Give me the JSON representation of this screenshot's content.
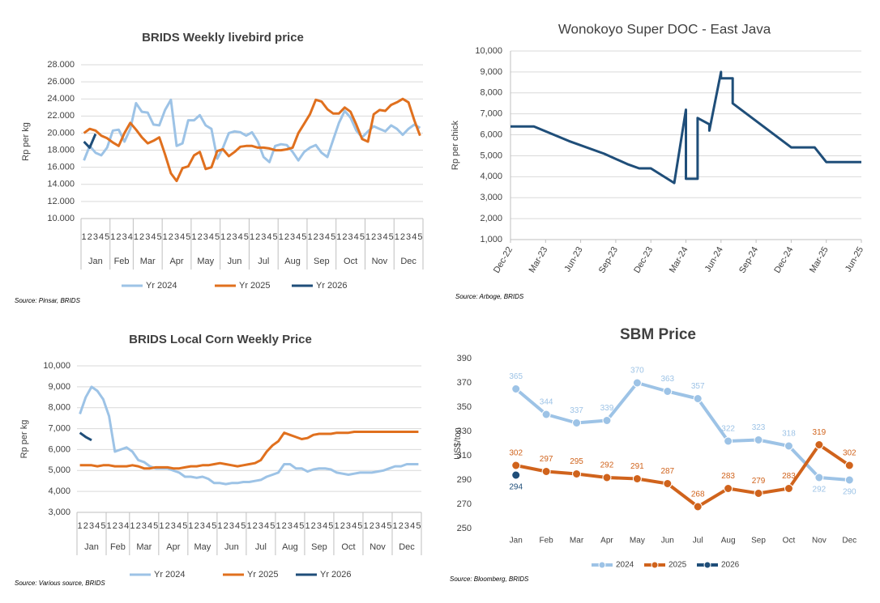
{
  "chart_data": [
    {
      "type": "line",
      "title": "BRIDS Weekly livebird price",
      "y_label": "Rp per kg",
      "source": "Source: Pinsar, BRIDS",
      "months": [
        {
          "label": "Jan",
          "weeks": [
            "1",
            "2",
            "3",
            "4",
            "5"
          ]
        },
        {
          "label": "Feb",
          "weeks": [
            "1",
            "2",
            "3",
            "4"
          ]
        },
        {
          "label": "Mar",
          "weeks": [
            "1",
            "2",
            "3",
            "4",
            "5"
          ]
        },
        {
          "label": "Apr",
          "weeks": [
            "1",
            "2",
            "3",
            "4",
            "5"
          ]
        },
        {
          "label": "May",
          "weeks": [
            "1",
            "2",
            "3",
            "4",
            "5"
          ]
        },
        {
          "label": "Jun",
          "weeks": [
            "1",
            "2",
            "3",
            "4",
            "5"
          ]
        },
        {
          "label": "Jul",
          "weeks": [
            "1",
            "2",
            "3",
            "4",
            "5"
          ]
        },
        {
          "label": "Aug",
          "weeks": [
            "1",
            "2",
            "3",
            "4",
            "5"
          ]
        },
        {
          "label": "Sep",
          "weeks": [
            "1",
            "2",
            "3",
            "4",
            "5"
          ]
        },
        {
          "label": "Oct",
          "weeks": [
            "1",
            "2",
            "3",
            "4",
            "5"
          ]
        },
        {
          "label": "Nov",
          "weeks": [
            "1",
            "2",
            "3",
            "4",
            "5"
          ]
        },
        {
          "label": "Dec",
          "weeks": [
            "1",
            "2",
            "3",
            "4",
            "5"
          ]
        }
      ],
      "ylim": [
        10000,
        28000
      ],
      "yticks": [
        {
          "value": 10000,
          "label": "10.000"
        },
        {
          "value": 12000,
          "label": "12.000"
        },
        {
          "value": 14000,
          "label": "14.000"
        },
        {
          "value": 16000,
          "label": "16.000"
        },
        {
          "value": 18000,
          "label": "18.000"
        },
        {
          "value": 20000,
          "label": "20.000"
        },
        {
          "value": 22000,
          "label": "22.000"
        },
        {
          "value": 24000,
          "label": "24.000"
        },
        {
          "value": 26000,
          "label": "26.000"
        },
        {
          "value": 28000,
          "label": "28.000"
        }
      ],
      "grid": true,
      "legend": "bottom",
      "series": [
        {
          "name": "Yr 2024",
          "color": "#9dc3e6",
          "values": [
            16800,
            18500,
            17700,
            17400,
            18300,
            20300,
            20400,
            19000,
            20500,
            23500,
            22500,
            22400,
            21000,
            20900,
            22700,
            23900,
            18500,
            18800,
            21500,
            21500,
            22100,
            20900,
            20500,
            17000,
            18300,
            20000,
            20200,
            20100,
            19700,
            20100,
            19000,
            17200,
            16600,
            18500,
            18700,
            18600,
            17800,
            16800,
            17800,
            18300,
            18600,
            17700,
            17200,
            19200,
            21200,
            22600,
            21800,
            20300,
            19500,
            20200,
            20800,
            20500,
            20200,
            20900,
            20500,
            19800,
            20500,
            21000,
            20600
          ]
        },
        {
          "name": "Yr 2025",
          "color": "#e0701e",
          "values": [
            20000,
            20500,
            20300,
            19700,
            19400,
            18900,
            18500,
            20000,
            21200,
            20400,
            19500,
            18800,
            19100,
            19500,
            17500,
            15300,
            14400,
            15900,
            16100,
            17400,
            17800,
            15800,
            16000,
            17900,
            18100,
            17300,
            17800,
            18400,
            18500,
            18500,
            18300,
            18300,
            18200,
            18000,
            18000,
            18100,
            18300,
            20000,
            21100,
            22200,
            23900,
            23700,
            22800,
            22300,
            22300,
            23000,
            22500,
            21000,
            19300,
            19000,
            22200,
            22700,
            22600,
            23300,
            23600,
            24000,
            23600,
            21500,
            19700
          ]
        },
        {
          "name": "Yr 2026",
          "color": "#1f4e79",
          "values": [
            19000,
            18300,
            19900,
            null,
            null,
            null,
            null,
            null,
            null,
            null,
            null,
            null,
            null,
            null,
            null,
            null,
            null,
            null,
            null,
            null,
            null,
            null,
            null,
            null,
            null,
            null,
            null,
            null,
            null,
            null,
            null,
            null,
            null,
            null,
            null,
            null,
            null,
            null,
            null,
            null,
            null,
            null,
            null,
            null,
            null,
            null,
            null,
            null,
            null,
            null,
            null,
            null,
            null,
            null,
            null,
            null,
            null,
            null,
            null
          ]
        }
      ]
    },
    {
      "type": "line",
      "title": "Wonokoyo Super DOC - East Java",
      "y_label": "Rp per chick",
      "source": "Source: Arboge, BRIDS",
      "x": [
        "2022-12",
        "2023-02",
        "2023-05",
        "2023-08",
        "2023-10",
        "2023-11",
        "2023-12",
        "2024-02",
        "2024-03",
        "2024-03",
        "2024-04",
        "2024-04",
        "2024-05",
        "2024-05",
        "2024-06",
        "2024-06",
        "2024-07",
        "2024-07",
        "2024-12",
        "2025-02",
        "2025-03",
        "2025-06"
      ],
      "xlim": [
        "2022-12",
        "2025-06"
      ],
      "xticks": [
        {
          "value": "2022-12",
          "label": "Dec-22"
        },
        {
          "value": "2023-03",
          "label": "Mar-23"
        },
        {
          "value": "2023-06",
          "label": "Jun-23"
        },
        {
          "value": "2023-09",
          "label": "Sep-23"
        },
        {
          "value": "2023-12",
          "label": "Dec-23"
        },
        {
          "value": "2024-03",
          "label": "Mar-24"
        },
        {
          "value": "2024-06",
          "label": "Jun-24"
        },
        {
          "value": "2024-09",
          "label": "Sep-24"
        },
        {
          "value": "2024-12",
          "label": "Dec-24"
        },
        {
          "value": "2025-03",
          "label": "Mar-25"
        },
        {
          "value": "2025-06",
          "label": "Jun-25"
        }
      ],
      "ylim": [
        1000,
        10000
      ],
      "yticks": [
        {
          "value": 1000,
          "label": "1,000"
        },
        {
          "value": 2000,
          "label": "2,000"
        },
        {
          "value": 3000,
          "label": "3,000"
        },
        {
          "value": 4000,
          "label": "4,000"
        },
        {
          "value": 5000,
          "label": "5,000"
        },
        {
          "value": 6000,
          "label": "6,000"
        },
        {
          "value": 7000,
          "label": "7,000"
        },
        {
          "value": 8000,
          "label": "8,000"
        },
        {
          "value": 9000,
          "label": "9,000"
        },
        {
          "value": 10000,
          "label": "10,000"
        }
      ],
      "grid": true,
      "series": [
        {
          "color": "#1f4e79",
          "values": [
            6400,
            6400,
            5700,
            5100,
            4600,
            4400,
            4400,
            3700,
            7200,
            3900,
            3900,
            6800,
            6500,
            6200,
            9000,
            8700,
            8700,
            7500,
            5400,
            5400,
            4700,
            4700
          ]
        }
      ]
    },
    {
      "type": "line",
      "title": "BRIDS Local Corn Weekly Price",
      "y_label": "Rp per kg",
      "source": "Source: Various source, BRIDS",
      "months": [
        {
          "label": "Jan",
          "weeks": [
            "1",
            "2",
            "3",
            "4",
            "5"
          ]
        },
        {
          "label": "Feb",
          "weeks": [
            "1",
            "2",
            "3",
            "4"
          ]
        },
        {
          "label": "Mar",
          "weeks": [
            "1",
            "2",
            "3",
            "4",
            "5"
          ]
        },
        {
          "label": "Apr",
          "weeks": [
            "1",
            "2",
            "3",
            "4",
            "5"
          ]
        },
        {
          "label": "May",
          "weeks": [
            "1",
            "2",
            "3",
            "4",
            "5"
          ]
        },
        {
          "label": "Jun",
          "weeks": [
            "1",
            "2",
            "3",
            "4",
            "5"
          ]
        },
        {
          "label": "Jul",
          "weeks": [
            "1",
            "2",
            "3",
            "4",
            "5"
          ]
        },
        {
          "label": "Aug",
          "weeks": [
            "1",
            "2",
            "3",
            "4",
            "5"
          ]
        },
        {
          "label": "Sep",
          "weeks": [
            "1",
            "2",
            "3",
            "4",
            "5"
          ]
        },
        {
          "label": "Oct",
          "weeks": [
            "1",
            "2",
            "3",
            "4",
            "5"
          ]
        },
        {
          "label": "Nov",
          "weeks": [
            "1",
            "2",
            "3",
            "4",
            "5"
          ]
        },
        {
          "label": "Dec",
          "weeks": [
            "1",
            "2",
            "3",
            "4",
            "5"
          ]
        }
      ],
      "ylim": [
        3000,
        10000
      ],
      "yticks": [
        {
          "value": 3000,
          "label": "3,000"
        },
        {
          "value": 4000,
          "label": "4,000"
        },
        {
          "value": 5000,
          "label": "5,000"
        },
        {
          "value": 6000,
          "label": "6,000"
        },
        {
          "value": 7000,
          "label": "7,000"
        },
        {
          "value": 8000,
          "label": "8,000"
        },
        {
          "value": 9000,
          "label": "9,000"
        },
        {
          "value": 10000,
          "label": "10,000"
        }
      ],
      "grid": true,
      "legend": "bottom",
      "series": [
        {
          "name": "Yr 2024",
          "color": "#9dc3e6",
          "values": [
            7700,
            8500,
            9000,
            8800,
            8400,
            7600,
            5900,
            6000,
            6100,
            5900,
            5500,
            5400,
            5200,
            5100,
            5100,
            5100,
            5000,
            4900,
            4700,
            4700,
            4650,
            4700,
            4600,
            4400,
            4400,
            4350,
            4400,
            4400,
            4450,
            4450,
            4500,
            4550,
            4700,
            4800,
            4900,
            5300,
            5300,
            5100,
            5100,
            4950,
            5050,
            5100,
            5100,
            5050,
            4900,
            4850,
            4800,
            4850,
            4900,
            4900,
            4900,
            4950,
            5000,
            5100,
            5200,
            5200,
            5300,
            5300,
            5300
          ]
        },
        {
          "name": "Yr 2025",
          "color": "#e0701e",
          "values": [
            5250,
            5250,
            5250,
            5200,
            5250,
            5250,
            5200,
            5200,
            5200,
            5250,
            5200,
            5100,
            5100,
            5150,
            5150,
            5150,
            5100,
            5100,
            5150,
            5200,
            5200,
            5250,
            5250,
            5300,
            5350,
            5300,
            5250,
            5200,
            5250,
            5300,
            5350,
            5500,
            5900,
            6200,
            6400,
            6800,
            6700,
            6600,
            6500,
            6550,
            6700,
            6750,
            6750,
            6750,
            6800,
            6800,
            6800,
            6850,
            6850,
            6850,
            6850,
            6850,
            6850,
            6850,
            6850,
            6850,
            6850,
            6850,
            6850
          ]
        },
        {
          "name": "Yr 2026",
          "color": "#1f4e79",
          "values": [
            6800,
            6600,
            6450,
            null,
            null,
            null,
            null,
            null,
            null,
            null,
            null,
            null,
            null,
            null,
            null,
            null,
            null,
            null,
            null,
            null,
            null,
            null,
            null,
            null,
            null,
            null,
            null,
            null,
            null,
            null,
            null,
            null,
            null,
            null,
            null,
            null,
            null,
            null,
            null,
            null,
            null,
            null,
            null,
            null,
            null,
            null,
            null,
            null,
            null,
            null,
            null,
            null,
            null,
            null,
            null,
            null,
            null,
            null,
            null
          ]
        }
      ]
    },
    {
      "type": "line",
      "title": "SBM Price",
      "y_label": "US$/ton",
      "source": "Source: Bloomberg, BRIDS",
      "categories": [
        "Jan",
        "Feb",
        "Mar",
        "Apr",
        "May",
        "Jun",
        "Jul",
        "Aug",
        "Sep",
        "Oct",
        "Nov",
        "Dec"
      ],
      "ylim": [
        250,
        390
      ],
      "yticks": [
        250,
        270,
        290,
        310,
        330,
        350,
        370,
        390
      ],
      "grid": false,
      "markers": true,
      "data_labels": true,
      "legend": "bottom",
      "series": [
        {
          "name": "2024",
          "color": "#9dc3e6",
          "label_color": "#9dc3e6",
          "values": [
            365,
            344,
            337,
            339,
            370,
            363,
            357,
            322,
            323,
            318,
            292,
            290
          ]
        },
        {
          "name": "2025",
          "color": "#d0631c",
          "label_color": "#d0631c",
          "values": [
            302,
            297,
            295,
            292,
            291,
            287,
            268,
            283,
            279,
            283,
            319,
            302
          ]
        },
        {
          "name": "2026",
          "color": "#1f4e79",
          "label_color": "#1f4e79",
          "values": [
            294,
            null,
            null,
            null,
            null,
            null,
            null,
            null,
            null,
            null,
            null,
            null
          ]
        }
      ]
    }
  ]
}
